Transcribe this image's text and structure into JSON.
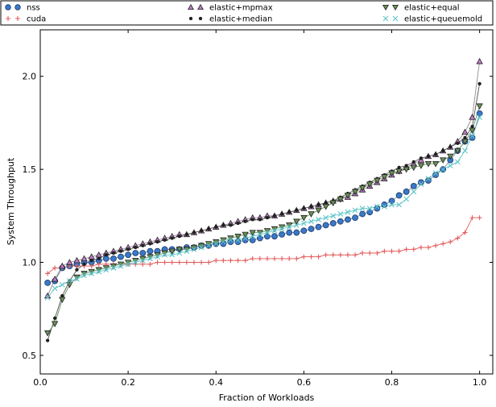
{
  "chart_data": {
    "type": "line",
    "title": "",
    "xlabel": "Fraction of Workloads",
    "ylabel": "System Throughput",
    "xlim": [
      0,
      1.03
    ],
    "ylim": [
      0.4,
      2.25
    ],
    "xticks": [
      "0.0",
      "0.2",
      "0.4",
      "0.6",
      "0.8",
      "1.0"
    ],
    "yticks": [
      "0.5",
      "1.0",
      "1.5",
      "2.0"
    ],
    "grid": false,
    "legend_position": "top",
    "series": [
      {
        "name": "nss",
        "color": "#3a78c8",
        "marker": "circle",
        "x": [
          0.0167,
          0.0333,
          0.05,
          0.0667,
          0.0833,
          0.1,
          0.1167,
          0.1333,
          0.15,
          0.1667,
          0.1833,
          0.2,
          0.2167,
          0.2333,
          0.25,
          0.2667,
          0.2833,
          0.3,
          0.3167,
          0.3333,
          0.35,
          0.3667,
          0.3833,
          0.4,
          0.4167,
          0.4333,
          0.45,
          0.4667,
          0.4833,
          0.5,
          0.5167,
          0.5333,
          0.55,
          0.5667,
          0.5833,
          0.6,
          0.6167,
          0.6333,
          0.65,
          0.6667,
          0.6833,
          0.7,
          0.7167,
          0.7333,
          0.75,
          0.7667,
          0.7833,
          0.8,
          0.8167,
          0.8333,
          0.85,
          0.8667,
          0.8833,
          0.9,
          0.9167,
          0.9333,
          0.95,
          0.9667,
          0.9833,
          1.0
        ],
        "values": [
          0.89,
          0.9,
          0.97,
          0.98,
          0.99,
          1.0,
          1.0,
          1.01,
          1.02,
          1.02,
          1.03,
          1.04,
          1.05,
          1.05,
          1.06,
          1.06,
          1.07,
          1.07,
          1.07,
          1.08,
          1.08,
          1.09,
          1.09,
          1.1,
          1.1,
          1.11,
          1.11,
          1.12,
          1.12,
          1.13,
          1.14,
          1.14,
          1.15,
          1.16,
          1.16,
          1.17,
          1.18,
          1.19,
          1.2,
          1.21,
          1.22,
          1.23,
          1.24,
          1.26,
          1.27,
          1.29,
          1.31,
          1.33,
          1.36,
          1.38,
          1.41,
          1.43,
          1.44,
          1.47,
          1.5,
          1.55,
          1.6,
          1.65,
          1.67,
          1.8
        ]
      },
      {
        "name": "cuda",
        "color": "#e35b5b",
        "marker": "plus",
        "x": [
          0.0167,
          0.0333,
          0.05,
          0.0667,
          0.0833,
          0.1,
          0.1167,
          0.1333,
          0.15,
          0.1667,
          0.1833,
          0.2,
          0.2167,
          0.2333,
          0.25,
          0.2667,
          0.2833,
          0.3,
          0.3167,
          0.3333,
          0.35,
          0.3667,
          0.3833,
          0.4,
          0.4167,
          0.4333,
          0.45,
          0.4667,
          0.4833,
          0.5,
          0.5167,
          0.5333,
          0.55,
          0.5667,
          0.5833,
          0.6,
          0.6167,
          0.6333,
          0.65,
          0.6667,
          0.6833,
          0.7,
          0.7167,
          0.7333,
          0.75,
          0.7667,
          0.7833,
          0.8,
          0.8167,
          0.8333,
          0.85,
          0.8667,
          0.8833,
          0.9,
          0.9167,
          0.9333,
          0.95,
          0.9667,
          0.9833,
          1.0
        ],
        "values": [
          0.94,
          0.97,
          0.97,
          0.98,
          0.98,
          0.98,
          0.98,
          0.99,
          0.99,
          0.99,
          0.99,
          0.99,
          0.99,
          0.99,
          0.99,
          1.0,
          1.0,
          1.0,
          1.0,
          1.0,
          1.0,
          1.0,
          1.0,
          1.01,
          1.01,
          1.01,
          1.01,
          1.01,
          1.02,
          1.02,
          1.02,
          1.02,
          1.02,
          1.02,
          1.02,
          1.03,
          1.03,
          1.03,
          1.04,
          1.04,
          1.04,
          1.04,
          1.04,
          1.05,
          1.05,
          1.05,
          1.06,
          1.06,
          1.06,
          1.07,
          1.07,
          1.08,
          1.08,
          1.09,
          1.1,
          1.11,
          1.13,
          1.16,
          1.24,
          1.24
        ]
      },
      {
        "name": "elastic+mpmax",
        "color": "#c07ac7",
        "marker": "triangle-up",
        "x": [
          0.0167,
          0.0333,
          0.05,
          0.0667,
          0.0833,
          0.1,
          0.1167,
          0.1333,
          0.15,
          0.1667,
          0.1833,
          0.2,
          0.2167,
          0.2333,
          0.25,
          0.2667,
          0.2833,
          0.3,
          0.3167,
          0.3333,
          0.35,
          0.3667,
          0.3833,
          0.4,
          0.4167,
          0.4333,
          0.45,
          0.4667,
          0.4833,
          0.5,
          0.5167,
          0.5333,
          0.55,
          0.5667,
          0.5833,
          0.6,
          0.6167,
          0.6333,
          0.65,
          0.6667,
          0.6833,
          0.7,
          0.7167,
          0.7333,
          0.75,
          0.7667,
          0.7833,
          0.8,
          0.8167,
          0.8333,
          0.85,
          0.8667,
          0.8833,
          0.9,
          0.9167,
          0.9333,
          0.95,
          0.9667,
          0.9833,
          1.0
        ],
        "values": [
          0.82,
          0.91,
          0.98,
          1.0,
          1.01,
          1.02,
          1.03,
          1.04,
          1.05,
          1.06,
          1.07,
          1.08,
          1.09,
          1.1,
          1.11,
          1.12,
          1.13,
          1.14,
          1.15,
          1.15,
          1.16,
          1.17,
          1.18,
          1.19,
          1.2,
          1.21,
          1.22,
          1.23,
          1.24,
          1.24,
          1.25,
          1.25,
          1.26,
          1.27,
          1.28,
          1.29,
          1.3,
          1.31,
          1.32,
          1.33,
          1.34,
          1.35,
          1.37,
          1.39,
          1.41,
          1.43,
          1.45,
          1.47,
          1.49,
          1.51,
          1.53,
          1.55,
          1.57,
          1.58,
          1.6,
          1.62,
          1.65,
          1.7,
          1.78,
          2.08
        ]
      },
      {
        "name": "elastic+median",
        "color": "#222222",
        "marker": "dot",
        "x": [
          0.0167,
          0.0333,
          0.05,
          0.0667,
          0.0833,
          0.1,
          0.1167,
          0.1333,
          0.15,
          0.1667,
          0.1833,
          0.2,
          0.2167,
          0.2333,
          0.25,
          0.2667,
          0.2833,
          0.3,
          0.3167,
          0.3333,
          0.35,
          0.3667,
          0.3833,
          0.4,
          0.4167,
          0.4333,
          0.45,
          0.4667,
          0.4833,
          0.5,
          0.5167,
          0.5333,
          0.55,
          0.5667,
          0.5833,
          0.6,
          0.6167,
          0.6333,
          0.65,
          0.6667,
          0.6833,
          0.7,
          0.7167,
          0.7333,
          0.75,
          0.7667,
          0.7833,
          0.8,
          0.8167,
          0.8333,
          0.85,
          0.8667,
          0.8833,
          0.9,
          0.9167,
          0.9333,
          0.95,
          0.9667,
          0.9833,
          1.0
        ],
        "values": [
          0.58,
          0.7,
          0.82,
          0.9,
          0.96,
          0.99,
          1.01,
          1.02,
          1.04,
          1.05,
          1.06,
          1.07,
          1.08,
          1.09,
          1.1,
          1.11,
          1.12,
          1.13,
          1.14,
          1.15,
          1.16,
          1.17,
          1.18,
          1.19,
          1.2,
          1.2,
          1.21,
          1.22,
          1.23,
          1.23,
          1.24,
          1.25,
          1.26,
          1.27,
          1.28,
          1.29,
          1.3,
          1.31,
          1.32,
          1.33,
          1.35,
          1.37,
          1.39,
          1.41,
          1.43,
          1.45,
          1.47,
          1.49,
          1.51,
          1.52,
          1.54,
          1.56,
          1.57,
          1.58,
          1.6,
          1.62,
          1.64,
          1.67,
          1.73,
          1.96
        ]
      },
      {
        "name": "elastic+equal",
        "color": "#6a8f5a",
        "marker": "triangle-down",
        "x": [
          0.0167,
          0.0333,
          0.05,
          0.0667,
          0.0833,
          0.1,
          0.1167,
          0.1333,
          0.15,
          0.1667,
          0.1833,
          0.2,
          0.2167,
          0.2333,
          0.25,
          0.2667,
          0.2833,
          0.3,
          0.3167,
          0.3333,
          0.35,
          0.3667,
          0.3833,
          0.4,
          0.4167,
          0.4333,
          0.45,
          0.4667,
          0.4833,
          0.5,
          0.5167,
          0.5333,
          0.55,
          0.5667,
          0.5833,
          0.6,
          0.6167,
          0.6333,
          0.65,
          0.6667,
          0.6833,
          0.7,
          0.7167,
          0.7333,
          0.75,
          0.7667,
          0.7833,
          0.8,
          0.8167,
          0.8333,
          0.85,
          0.8667,
          0.8833,
          0.9,
          0.9167,
          0.9333,
          0.95,
          0.9667,
          0.9833,
          1.0
        ],
        "values": [
          0.62,
          0.67,
          0.8,
          0.88,
          0.92,
          0.94,
          0.95,
          0.96,
          0.97,
          0.98,
          0.99,
          1.0,
          1.01,
          1.02,
          1.03,
          1.04,
          1.05,
          1.06,
          1.07,
          1.07,
          1.08,
          1.09,
          1.1,
          1.11,
          1.12,
          1.13,
          1.14,
          1.15,
          1.16,
          1.16,
          1.17,
          1.18,
          1.19,
          1.2,
          1.22,
          1.24,
          1.26,
          1.28,
          1.3,
          1.32,
          1.34,
          1.36,
          1.38,
          1.4,
          1.42,
          1.44,
          1.46,
          1.48,
          1.49,
          1.5,
          1.51,
          1.52,
          1.53,
          1.53,
          1.55,
          1.57,
          1.6,
          1.65,
          1.71,
          1.84
        ]
      },
      {
        "name": "elastic+queuemold",
        "color": "#5ec4c9",
        "marker": "x",
        "x": [
          0.0167,
          0.0333,
          0.05,
          0.0667,
          0.0833,
          0.1,
          0.1167,
          0.1333,
          0.15,
          0.1667,
          0.1833,
          0.2,
          0.2167,
          0.2333,
          0.25,
          0.2667,
          0.2833,
          0.3,
          0.3167,
          0.3333,
          0.35,
          0.3667,
          0.3833,
          0.4,
          0.4167,
          0.4333,
          0.45,
          0.4667,
          0.4833,
          0.5,
          0.5167,
          0.5333,
          0.55,
          0.5667,
          0.5833,
          0.6,
          0.6167,
          0.6333,
          0.65,
          0.6667,
          0.6833,
          0.7,
          0.7167,
          0.7333,
          0.75,
          0.7667,
          0.7833,
          0.8,
          0.8167,
          0.8333,
          0.85,
          0.8667,
          0.8833,
          0.9,
          0.9167,
          0.9333,
          0.95,
          0.9667,
          0.9833,
          1.0
        ],
        "values": [
          0.81,
          0.86,
          0.88,
          0.9,
          0.91,
          0.93,
          0.94,
          0.95,
          0.96,
          0.97,
          0.98,
          0.99,
          1.0,
          1.01,
          1.02,
          1.03,
          1.04,
          1.04,
          1.05,
          1.06,
          1.07,
          1.08,
          1.09,
          1.1,
          1.11,
          1.12,
          1.12,
          1.13,
          1.14,
          1.15,
          1.16,
          1.17,
          1.18,
          1.19,
          1.2,
          1.21,
          1.22,
          1.23,
          1.24,
          1.25,
          1.26,
          1.27,
          1.28,
          1.29,
          1.29,
          1.3,
          1.3,
          1.31,
          1.31,
          1.34,
          1.38,
          1.42,
          1.45,
          1.48,
          1.5,
          1.52,
          1.54,
          1.6,
          1.68,
          1.78
        ]
      }
    ]
  }
}
